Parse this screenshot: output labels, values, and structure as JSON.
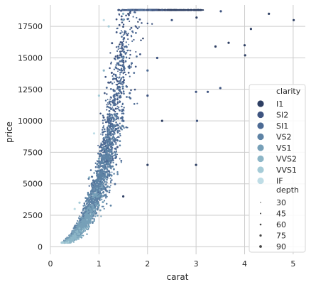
{
  "chart_data": {
    "type": "scatter",
    "xlabel": "carat",
    "ylabel": "price",
    "xlim": [
      0,
      5.25
    ],
    "ylim": [
      -600,
      19200
    ],
    "xticks": [
      0,
      1,
      2,
      3,
      4,
      5
    ],
    "yticks": [
      0,
      2500,
      5000,
      7500,
      10000,
      12500,
      15000,
      17500
    ],
    "grid": true,
    "legend_position": "right",
    "hue": {
      "title": "clarity",
      "levels": [
        "I1",
        "SI2",
        "SI1",
        "VS2",
        "VS1",
        "VVS2",
        "VVS1",
        "IF"
      ],
      "colors": [
        "#2e3f63",
        "#3e5480",
        "#4c6a94",
        "#5e83a5",
        "#77a0b8",
        "#8db6c7",
        "#a5cbd7",
        "#bfdde6"
      ]
    },
    "size": {
      "title": "depth",
      "levels": [
        "30",
        "45",
        "60",
        "75",
        "90"
      ],
      "values": [
        30,
        45,
        60,
        75,
        90
      ]
    },
    "series": [
      {
        "name": "I1",
        "points": [
          [
            1.5,
            4000
          ],
          [
            2.0,
            6500
          ],
          [
            3.0,
            6500
          ],
          [
            2.3,
            10000
          ],
          [
            3.01,
            18200
          ],
          [
            4.0,
            16000
          ],
          [
            4.13,
            17300
          ],
          [
            4.5,
            18500
          ],
          [
            5.01,
            18000
          ],
          [
            3.67,
            16200
          ],
          [
            3.4,
            15900
          ],
          [
            4.01,
            15200
          ]
        ]
      },
      {
        "name": "SI2",
        "points": [
          [
            2.0,
            12000
          ],
          [
            2.2,
            15000
          ],
          [
            3.0,
            12300
          ],
          [
            3.5,
            12600
          ],
          [
            3.51,
            18700
          ],
          [
            2.5,
            18000
          ],
          [
            3.02,
            10000
          ],
          [
            3.24,
            12300
          ]
        ]
      },
      {
        "name": "SI1",
        "points": [
          [
            1.5,
            10000
          ],
          [
            2.0,
            14000
          ],
          [
            1.2,
            6000
          ]
        ]
      },
      {
        "name": "VS2",
        "points": [
          [
            1.2,
            9000
          ],
          [
            1.5,
            15000
          ],
          [
            1.0,
            5000
          ]
        ]
      },
      {
        "name": "VS1",
        "points": [
          [
            1.0,
            7000
          ],
          [
            1.5,
            18000
          ],
          [
            0.8,
            4000
          ]
        ]
      },
      {
        "name": "VVS2",
        "points": [
          [
            0.8,
            5500
          ],
          [
            1.1,
            14000
          ],
          [
            1.5,
            18500
          ]
        ]
      },
      {
        "name": "VVS1",
        "points": [
          [
            0.6,
            3500
          ],
          [
            1.0,
            12000
          ],
          [
            1.2,
            17500
          ]
        ]
      },
      {
        "name": "IF",
        "points": [
          [
            0.5,
            3000
          ],
          [
            0.9,
            9000
          ],
          [
            1.1,
            18000
          ]
        ]
      }
    ]
  }
}
